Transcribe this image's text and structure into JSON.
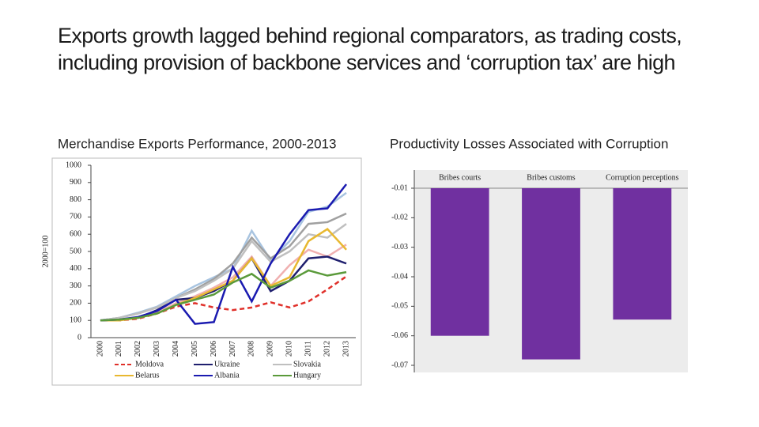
{
  "title": "Exports growth lagged behind regional comparators, as trading costs, including provision of backbone services and ‘corruption tax’ are high",
  "chart_data": [
    {
      "type": "line",
      "title": "Merchandise Exports Performance, 2000-2013",
      "y_label": "2000=100",
      "categories": [
        "2000",
        "2001",
        "2002",
        "2003",
        "2004",
        "2005",
        "2006",
        "2007",
        "2008",
        "2009",
        "2010",
        "2011",
        "2012",
        "2013"
      ],
      "ylim": [
        0,
        1000
      ],
      "yticks": [
        0,
        100,
        200,
        300,
        400,
        500,
        600,
        700,
        800,
        900,
        1000
      ],
      "series": [
        {
          "name": "Moldova",
          "color": "#e0302a",
          "dashed": true,
          "values": [
            100,
            100,
            110,
            140,
            180,
            200,
            175,
            160,
            175,
            205,
            175,
            210,
            280,
            355
          ]
        },
        {
          "name": "Ukraine",
          "color": "#1f1f6e",
          "values": [
            100,
            105,
            115,
            160,
            220,
            230,
            270,
            330,
            460,
            270,
            330,
            460,
            470,
            430
          ]
        },
        {
          "name": "Slovakia",
          "color": "#bfbfbf",
          "values": [
            100,
            115,
            140,
            175,
            230,
            270,
            330,
            400,
            560,
            440,
            500,
            600,
            580,
            660
          ]
        },
        {
          "name": "Belarus",
          "color": "#e8b830",
          "values": [
            100,
            100,
            115,
            140,
            190,
            230,
            280,
            330,
            460,
            300,
            350,
            560,
            630,
            510
          ]
        },
        {
          "name": "Albania",
          "color": "#1a1ab0",
          "values": [
            100,
            105,
            120,
            155,
            220,
            80,
            90,
            410,
            210,
            430,
            600,
            740,
            750,
            890
          ]
        },
        {
          "name": "Hungary",
          "color": "#5a9a3a",
          "values": [
            100,
            105,
            115,
            140,
            190,
            220,
            250,
            320,
            370,
            290,
            330,
            390,
            360,
            380
          ]
        },
        {
          "color": "#a8c4e0",
          "values": [
            100,
            115,
            145,
            180,
            240,
            300,
            350,
            400,
            620,
            450,
            560,
            730,
            760,
            840
          ]
        },
        {
          "color": "#a0a0a0",
          "values": [
            100,
            115,
            140,
            175,
            230,
            280,
            340,
            430,
            580,
            460,
            530,
            660,
            670,
            720
          ]
        },
        {
          "color": "#f0b0b0",
          "values": [
            100,
            105,
            115,
            145,
            200,
            240,
            290,
            350,
            470,
            300,
            420,
            510,
            470,
            540
          ]
        }
      ]
    },
    {
      "type": "bar",
      "title": "Productivity Losses Associated with Corruption",
      "categories": [
        "Bribes courts",
        "Bribes customs",
        "Corruption perceptions"
      ],
      "values": [
        -0.06,
        -0.068,
        -0.0545
      ],
      "color": "#7030a0",
      "ylim": [
        -0.07,
        -0.01
      ],
      "yticks": [
        -0.01,
        -0.02,
        -0.03,
        -0.04,
        -0.05,
        -0.06,
        -0.07
      ]
    }
  ]
}
